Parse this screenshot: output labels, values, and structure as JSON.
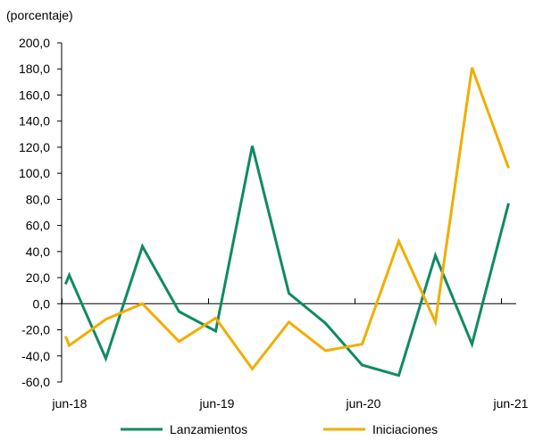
{
  "chart_data": {
    "type": "line",
    "unit_label": "(porcentaje)",
    "x_labels": [
      "jun-18",
      "jun-19",
      "jun-20",
      "jun-21"
    ],
    "x_label_index": [
      0,
      4,
      8,
      12
    ],
    "x_count": 13,
    "ylim": [
      -60,
      200
    ],
    "y_ticks": [
      "200,0",
      "180,0",
      "160,0",
      "140,0",
      "120,0",
      "100,0",
      "80,0",
      "60,0",
      "40,0",
      "20,0",
      "0,0",
      "-20,0",
      "-40,0",
      "-60,0"
    ],
    "y_tick_values": [
      200,
      180,
      160,
      140,
      120,
      100,
      80,
      60,
      40,
      20,
      0,
      -20,
      -40,
      -60
    ],
    "series": [
      {
        "name": "Lanzamientos",
        "color": "#0f8a64",
        "points": [
          [
            -0.1,
            15
          ],
          [
            0,
            22
          ],
          [
            1,
            -42
          ],
          [
            2,
            44
          ],
          [
            3,
            -6
          ],
          [
            4,
            -21
          ],
          [
            5,
            121
          ],
          [
            6,
            8
          ],
          [
            7,
            -15
          ],
          [
            8,
            -47
          ],
          [
            9,
            -55
          ],
          [
            10,
            37
          ],
          [
            11,
            -31
          ],
          [
            12,
            77
          ]
        ]
      },
      {
        "name": "Iniciaciones",
        "color": "#f0ae00",
        "points": [
          [
            -0.1,
            -25
          ],
          [
            0,
            -32
          ],
          [
            1,
            -12
          ],
          [
            2,
            0
          ],
          [
            3,
            -29
          ],
          [
            4,
            -11
          ],
          [
            5,
            -50
          ],
          [
            6,
            -14
          ],
          [
            7,
            -36
          ],
          [
            8,
            -31
          ],
          [
            9,
            48
          ],
          [
            10,
            -14
          ],
          [
            11,
            181
          ],
          [
            12,
            104
          ]
        ]
      }
    ],
    "legend_position": "bottom",
    "grid": false
  }
}
